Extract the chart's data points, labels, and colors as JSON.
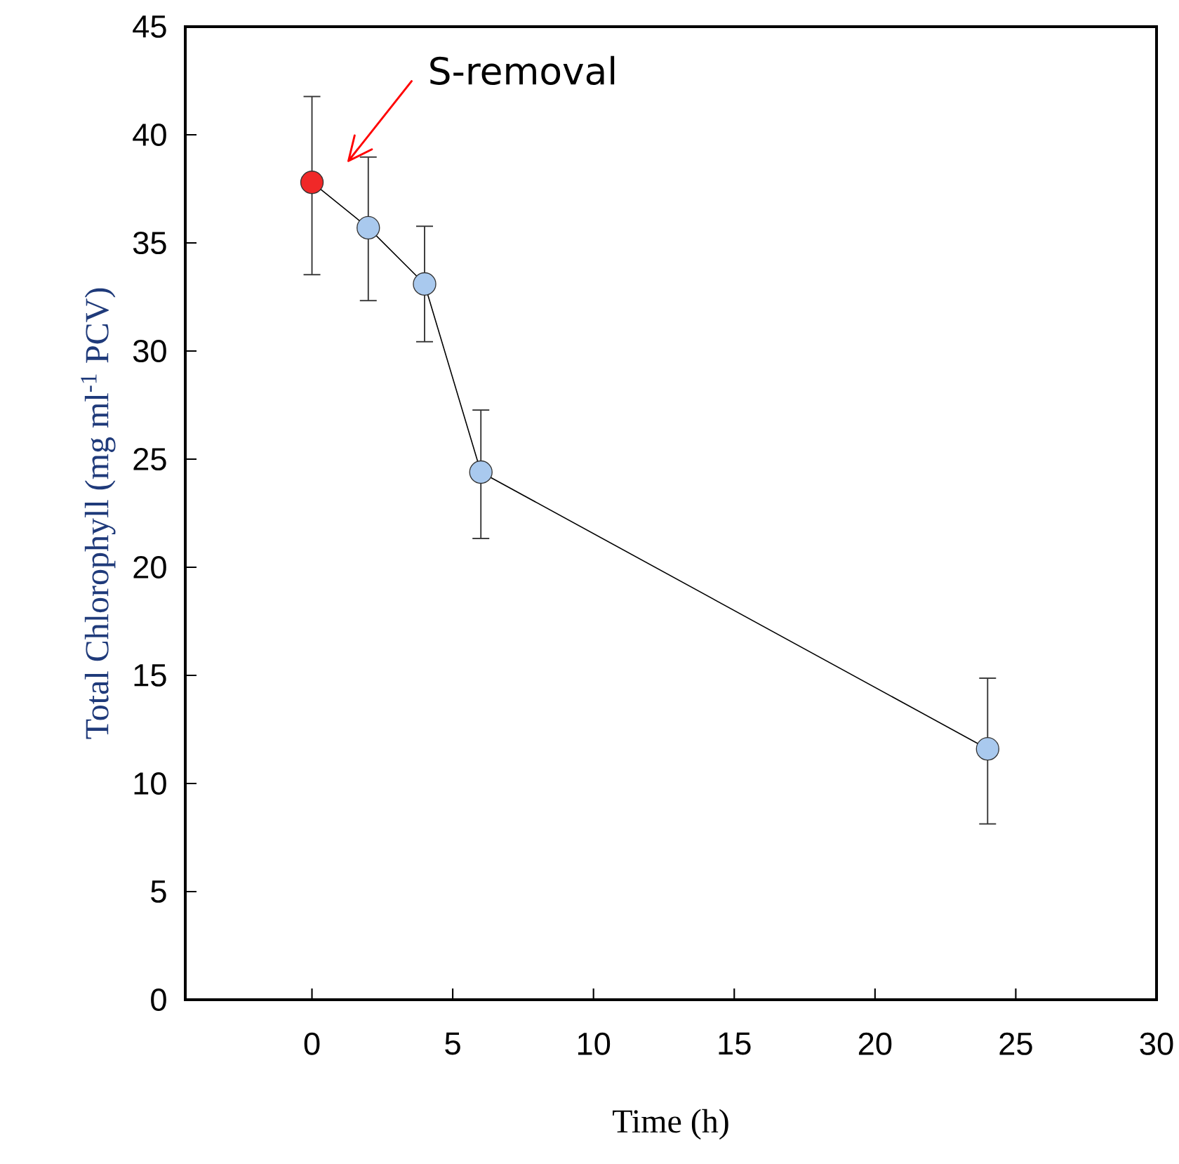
{
  "chart_data": {
    "type": "line",
    "xlabel": "Time (h)",
    "ylabel": "Total Chlorophyll    (mg ml$^{-1}$ PCV)",
    "x": [
      0,
      2,
      4,
      6,
      24
    ],
    "values": [
      37.8,
      35.7,
      33.1,
      24.4,
      11.6
    ],
    "errors": [
      [
        33.5,
        41.8
      ],
      [
        32.3,
        39.0
      ],
      [
        30.4,
        35.8
      ],
      [
        21.3,
        27.3
      ],
      [
        8.1,
        14.9
      ]
    ],
    "colors": [
      "#f02828",
      "#a9c9ee",
      "#a9c9ee",
      "#a9c9ee",
      "#a9c9ee"
    ],
    "color": "#000000",
    "marker": "circle",
    "line_style": "solid",
    "annotations": [
      "S-removal"
    ],
    "xlim": [
      -4.5,
      30
    ],
    "ylim": [
      0,
      45
    ],
    "xticks": [
      0,
      5,
      10,
      15,
      20,
      25,
      30
    ],
    "yticks": [
      0,
      5,
      10,
      15,
      20,
      25,
      30,
      35,
      40,
      45
    ]
  }
}
